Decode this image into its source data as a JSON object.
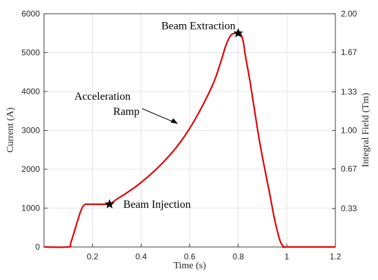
{
  "chart_data": {
    "type": "line",
    "title": "",
    "xlabel": "Time (s)",
    "ylabel": "Current (A)",
    "y2label": "Integral Field (Tm)",
    "xlim": [
      0,
      1.2
    ],
    "ylim": [
      0,
      6000
    ],
    "y2lim": [
      0,
      2.0
    ],
    "grid": true,
    "x_ticks": [
      "0.2",
      "0.4",
      "0.6",
      "0.8",
      "1",
      "1.2"
    ],
    "y_ticks": [
      "0",
      "1000",
      "2000",
      "3000",
      "4000",
      "5000",
      "6000"
    ],
    "y2_ticks": [
      "0.33",
      "0.67",
      "1.00",
      "1.33",
      "1.67",
      "2.00"
    ],
    "series": [
      {
        "color": "#e00000",
        "x": [
          0.0,
          0.1,
          0.11,
          0.13,
          0.15,
          0.165,
          0.18,
          0.2,
          0.22,
          0.25,
          0.27,
          0.3,
          0.35,
          0.4,
          0.45,
          0.5,
          0.55,
          0.6,
          0.65,
          0.7,
          0.73,
          0.75,
          0.77,
          0.79,
          0.8,
          0.81,
          0.82,
          0.83,
          0.85,
          0.88,
          0.9,
          0.93,
          0.95,
          0.97,
          0.98,
          0.99,
          1.0,
          1.2
        ],
        "y": [
          0,
          0,
          100,
          500,
          900,
          1080,
          1100,
          1100,
          1100,
          1100,
          1100,
          1230,
          1430,
          1660,
          1930,
          2240,
          2600,
          3050,
          3600,
          4250,
          4800,
          5200,
          5450,
          5500,
          5500,
          5480,
          5300,
          4900,
          4200,
          3000,
          2300,
          1350,
          700,
          200,
          60,
          0,
          0,
          0
        ]
      }
    ],
    "annotations": [
      {
        "id": "injection",
        "text": "Beam Injection",
        "x": 0.27,
        "y": 1100
      },
      {
        "id": "extraction",
        "text": "Beam Extraction",
        "x": 0.8,
        "y": 5500
      },
      {
        "id": "ramp",
        "lines": [
          "Acceleration",
          "Ramp"
        ]
      }
    ]
  }
}
